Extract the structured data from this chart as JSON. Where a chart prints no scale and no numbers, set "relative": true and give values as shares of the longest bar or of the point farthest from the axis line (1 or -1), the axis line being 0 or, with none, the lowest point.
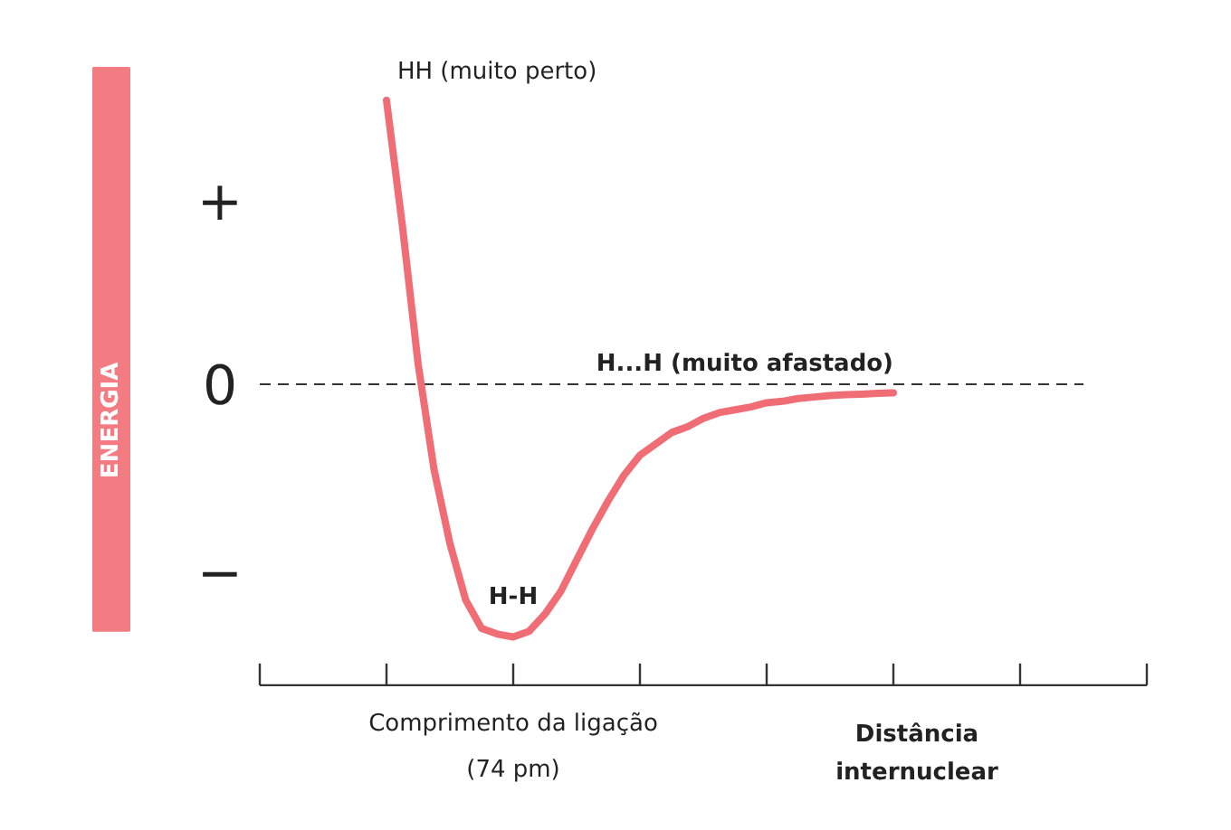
{
  "chart_data": {
    "type": "line",
    "relative": true,
    "xlabel": "Distância internuclear",
    "categories": [
      null,
      null,
      null,
      null,
      null,
      null,
      null,
      null,
      null,
      null,
      null,
      null,
      null,
      null,
      null,
      null,
      null,
      null,
      null,
      null,
      null,
      null,
      null,
      null,
      null,
      null,
      null,
      null,
      null,
      null,
      null,
      null,
      null
    ],
    "series": [
      {
        "color": "#f06d75",
        "values": [
          1,
          0.56,
          0.07,
          -0.3,
          -0.56,
          -0.76,
          -0.86,
          -0.88,
          -0.89,
          -0.87,
          -0.81,
          -0.73,
          -0.62,
          -0.51,
          -0.41,
          -0.32,
          -0.25,
          -0.21,
          -0.17,
          -0.15,
          -0.12,
          -0.1,
          -0.09,
          -0.08,
          -0.065,
          -0.06,
          -0.05,
          -0.045,
          -0.04,
          -0.037,
          -0.035,
          -0.032,
          -0.03
        ]
      }
    ],
    "ref_lines": [
      {
        "axis": "y",
        "value": 0,
        "label": "0",
        "line_style": "dashed",
        "color": "#333333"
      }
    ],
    "annotations": [
      "HH (muito perto)",
      "H...H (muito afastado)",
      "H-H",
      "Comprimento da ligação\n(74 pm)",
      "+",
      "−",
      "ENERGIA"
    ],
    "grid": false,
    "marker": "none",
    "line_style": "solid"
  }
}
